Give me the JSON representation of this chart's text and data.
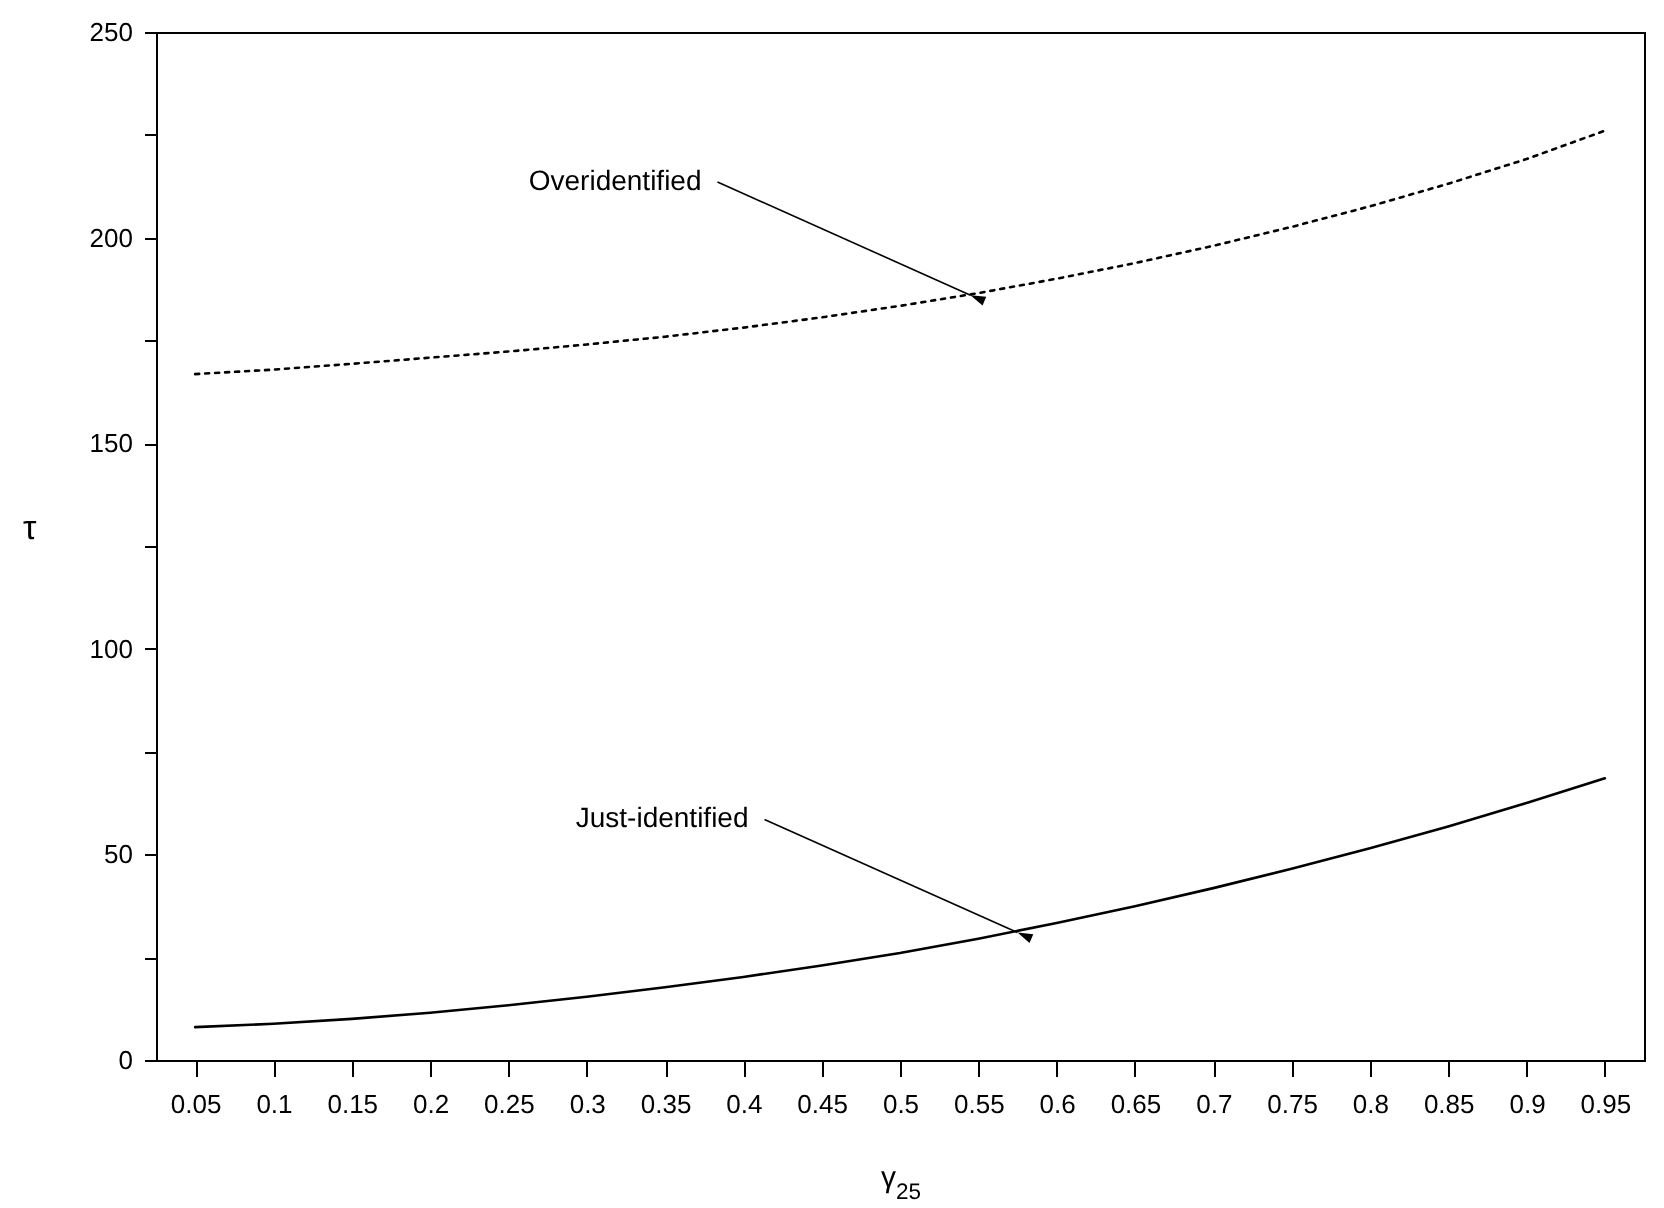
{
  "chart_data": {
    "type": "line",
    "xlabel": "γ$_{25}$",
    "ylabel": "τ",
    "x": [
      0.05,
      0.1,
      0.15,
      0.2,
      0.25,
      0.3,
      0.35,
      0.4,
      0.45,
      0.5,
      0.55,
      0.6,
      0.65,
      0.7,
      0.75,
      0.8,
      0.85,
      0.9,
      0.95
    ],
    "series": [
      {
        "color": "#000000",
        "line_style": "dotted",
        "values": [
          166.8,
          167.9,
          169.3,
          170.8,
          172.3,
          174,
          175.9,
          178.1,
          180.6,
          183.4,
          186.5,
          190,
          193.8,
          198,
          202.6,
          207.6,
          213.1,
          219.1,
          226
        ]
      },
      {
        "color": "#000000",
        "line_style": "solid",
        "values": [
          8,
          8.8,
          10,
          11.5,
          13.3,
          15.4,
          17.7,
          20.2,
          23,
          26,
          29.5,
          33.3,
          37.4,
          41.8,
          46.5,
          51.5,
          56.8,
          62.5,
          68.5
        ]
      }
    ],
    "annotations": [
      {
        "text": "Overidentified",
        "x": 0.545,
        "y": 186
      },
      {
        "text": "Just-identified",
        "x": 0.575,
        "y": 31
      }
    ],
    "xlim": [
      0.025,
      0.975
    ],
    "xticks": [
      0.05,
      0.1,
      0.15,
      0.2,
      0.25,
      0.3,
      0.35,
      0.4,
      0.45,
      0.5,
      0.55,
      0.6,
      0.65,
      0.7,
      0.75,
      0.8,
      0.85,
      0.9,
      0.95
    ],
    "ylim": [
      0,
      250
    ],
    "yticks": [
      0,
      {
        "value": 25,
        "label": null
      },
      50,
      {
        "value": 75,
        "label": null
      },
      100,
      {
        "value": 125,
        "label": null
      },
      150,
      {
        "value": 175,
        "label": null
      },
      200,
      {
        "value": 225,
        "label": null
      },
      250
    ],
    "grid": false,
    "marker": "none"
  }
}
